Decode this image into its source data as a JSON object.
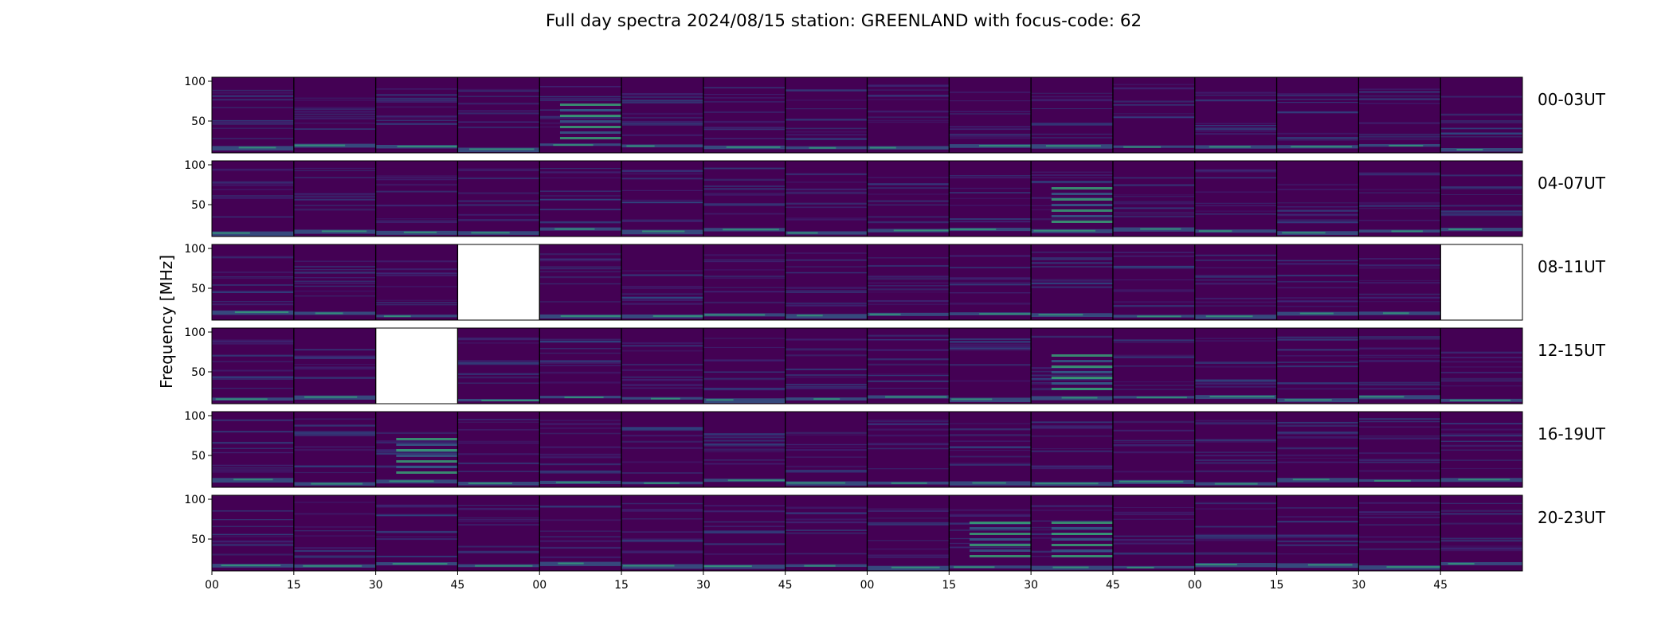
{
  "chart_data": {
    "type": "heatmap",
    "title": "Full day spectra 2024/08/15 station: GREENLAND with focus-code: 62",
    "ylabel": "Frequency [MHz]",
    "xlabel": "",
    "ylim": [
      10,
      105
    ],
    "y_ticks": [
      100,
      50
    ],
    "x_tick_labels": [
      "00",
      "15",
      "30",
      "45",
      "00",
      "15",
      "30",
      "45",
      "00",
      "15",
      "30",
      "45",
      "00",
      "15",
      "30",
      "45"
    ],
    "colormap": "viridis",
    "colors": {
      "background": "#440154",
      "mid": "#31688e",
      "bright": "#35b779",
      "hot": "#fde725"
    },
    "panels_per_row": 16,
    "rows": [
      {
        "label": "00-03UT",
        "missing_panels": [],
        "strong_band_panels": [
          4
        ]
      },
      {
        "label": "04-07UT",
        "missing_panels": [],
        "strong_band_panels": [
          10
        ]
      },
      {
        "label": "08-11UT",
        "missing_panels": [
          3,
          15
        ],
        "strong_band_panels": []
      },
      {
        "label": "12-15UT",
        "missing_panels": [
          2
        ],
        "strong_band_panels": [
          10
        ]
      },
      {
        "label": "16-19UT",
        "missing_panels": [],
        "strong_band_panels": [
          2
        ]
      },
      {
        "label": "20-23UT",
        "missing_panels": [],
        "strong_band_panels": [
          9,
          10
        ]
      }
    ]
  }
}
